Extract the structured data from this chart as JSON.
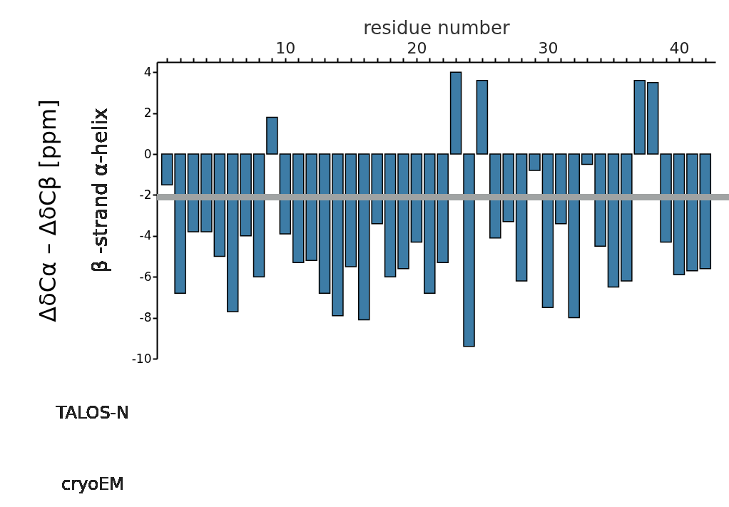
{
  "chart_data": {
    "type": "bar",
    "xlabel": "residue number",
    "ylabel": "ΔδCα – ΔδCβ [ppm]",
    "x": [
      1,
      2,
      3,
      4,
      5,
      6,
      7,
      8,
      9,
      10,
      11,
      12,
      13,
      14,
      15,
      16,
      17,
      18,
      19,
      20,
      21,
      22,
      23,
      24,
      25,
      26,
      27,
      28,
      29,
      30,
      31,
      32,
      33,
      34,
      35,
      36,
      37,
      38,
      39,
      40,
      41,
      42
    ],
    "values": [
      -1.5,
      -6.8,
      -3.8,
      -3.8,
      -5.0,
      -7.7,
      -4.0,
      -6.0,
      1.8,
      -3.9,
      -5.3,
      -5.2,
      -6.8,
      -7.9,
      -5.5,
      -8.1,
      -3.4,
      -6.0,
      -5.6,
      -4.3,
      -6.8,
      -5.3,
      4.0,
      -9.4,
      3.6,
      -4.1,
      -3.3,
      -6.2,
      -0.8,
      -7.5,
      -3.4,
      -8.0,
      -0.5,
      -4.5,
      -6.5,
      -6.2,
      3.6,
      3.5,
      -4.3,
      -5.9,
      -5.7,
      -5.6
    ],
    "color": "#3d7ca6",
    "xlim": [
      0.5,
      42.5
    ],
    "xticks": [
      {
        "value": 1,
        "label": null
      },
      {
        "value": 2,
        "label": null
      },
      {
        "value": 3,
        "label": null
      },
      {
        "value": 4,
        "label": null
      },
      {
        "value": 5,
        "label": null
      },
      {
        "value": 6,
        "label": null
      },
      {
        "value": 7,
        "label": null
      },
      {
        "value": 8,
        "label": null
      },
      {
        "value": 9,
        "label": null
      },
      10,
      {
        "value": 11,
        "label": null
      },
      {
        "value": 12,
        "label": null
      },
      {
        "value": 13,
        "label": null
      },
      {
        "value": 14,
        "label": null
      },
      {
        "value": 15,
        "label": null
      },
      {
        "value": 16,
        "label": null
      },
      {
        "value": 17,
        "label": null
      },
      {
        "value": 18,
        "label": null
      },
      {
        "value": 19,
        "label": null
      },
      20,
      {
        "value": 21,
        "label": null
      },
      {
        "value": 22,
        "label": null
      },
      {
        "value": 23,
        "label": null
      },
      {
        "value": 24,
        "label": null
      },
      {
        "value": 25,
        "label": null
      },
      {
        "value": 26,
        "label": null
      },
      {
        "value": 27,
        "label": null
      },
      {
        "value": 28,
        "label": null
      },
      {
        "value": 29,
        "label": null
      },
      30,
      {
        "value": 31,
        "label": null
      },
      {
        "value": 32,
        "label": null
      },
      {
        "value": 33,
        "label": null
      },
      {
        "value": 34,
        "label": null
      },
      {
        "value": 35,
        "label": null
      },
      {
        "value": 36,
        "label": null
      },
      {
        "value": 37,
        "label": null
      },
      {
        "value": 38,
        "label": null
      },
      {
        "value": 39,
        "label": null
      },
      40,
      {
        "value": 41,
        "label": null
      },
      {
        "value": 42,
        "label": null
      }
    ],
    "ylim": [
      -10,
      4.5
    ],
    "yticks": [
      -10,
      -8,
      -6,
      -4,
      -2,
      0,
      2,
      4
    ],
    "ref_lines": [
      {
        "axis": "y",
        "value": -2.1,
        "color": "#a0a3a3"
      }
    ],
    "annotations": [
      "β -strand  α-helix",
      "TALOS-N",
      "cryoEM"
    ],
    "grid": false
  }
}
